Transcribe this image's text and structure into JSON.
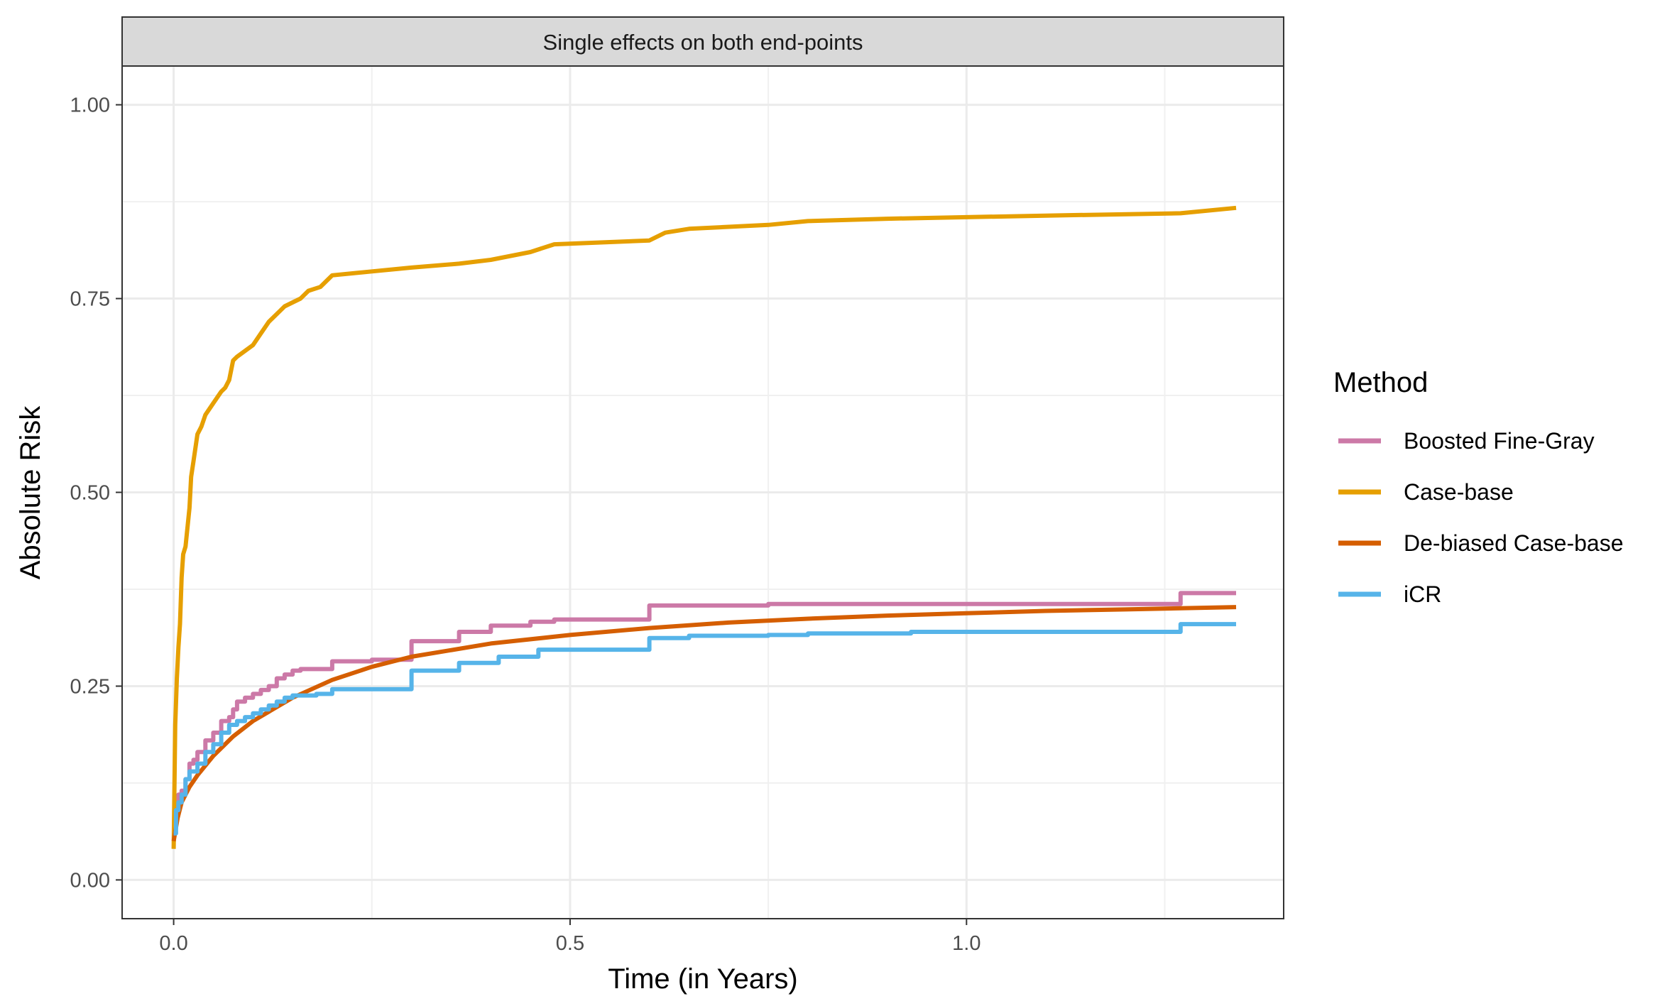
{
  "chart_data": {
    "type": "line",
    "facet_title": "Single effects on both end-points",
    "xlabel": "Time (in Years)",
    "ylabel": "Absolute Risk",
    "xlim": [
      -0.065,
      1.4
    ],
    "ylim": [
      -0.05,
      1.05
    ],
    "x_ticks": [
      0.0,
      0.5,
      1.0
    ],
    "x_tick_labels": [
      "0.0",
      "0.5",
      "1.0"
    ],
    "y_ticks": [
      0.0,
      0.25,
      0.5,
      0.75,
      1.0
    ],
    "y_tick_labels": [
      "0.00",
      "0.25",
      "0.50",
      "0.75",
      "1.00"
    ],
    "grid": true,
    "legend": {
      "title": "Method",
      "placement": "right",
      "entries": [
        "Boosted Fine-Gray",
        "Case-base",
        "De-biased Case-base",
        "iCR"
      ]
    },
    "series": [
      {
        "name": "Boosted Fine-Gray",
        "color": "#CC79A7",
        "step": true,
        "x": [
          0.0,
          0.003,
          0.006,
          0.01,
          0.015,
          0.02,
          0.025,
          0.03,
          0.04,
          0.05,
          0.06,
          0.07,
          0.075,
          0.08,
          0.09,
          0.1,
          0.11,
          0.12,
          0.13,
          0.14,
          0.15,
          0.16,
          0.19,
          0.2,
          0.25,
          0.3,
          0.36,
          0.4,
          0.45,
          0.48,
          0.6,
          0.75,
          1.27,
          1.34
        ],
        "y": [
          0.07,
          0.1,
          0.11,
          0.115,
          0.13,
          0.15,
          0.155,
          0.165,
          0.18,
          0.19,
          0.205,
          0.21,
          0.22,
          0.23,
          0.235,
          0.24,
          0.245,
          0.25,
          0.26,
          0.265,
          0.27,
          0.272,
          0.272,
          0.282,
          0.284,
          0.308,
          0.32,
          0.328,
          0.333,
          0.336,
          0.354,
          0.356,
          0.37,
          0.37
        ]
      },
      {
        "name": "Case-base",
        "color": "#E69F00",
        "step": false,
        "x": [
          0.0,
          0.002,
          0.004,
          0.006,
          0.008,
          0.01,
          0.012,
          0.015,
          0.02,
          0.022,
          0.025,
          0.03,
          0.035,
          0.04,
          0.05,
          0.06,
          0.065,
          0.07,
          0.075,
          0.08,
          0.1,
          0.11,
          0.12,
          0.13,
          0.14,
          0.15,
          0.16,
          0.17,
          0.185,
          0.2,
          0.25,
          0.3,
          0.36,
          0.4,
          0.45,
          0.48,
          0.6,
          0.62,
          0.65,
          0.75,
          0.8,
          0.9,
          1.0,
          1.1,
          1.27,
          1.34
        ],
        "y": [
          0.04,
          0.2,
          0.26,
          0.3,
          0.33,
          0.39,
          0.42,
          0.43,
          0.48,
          0.52,
          0.54,
          0.575,
          0.585,
          0.6,
          0.615,
          0.63,
          0.635,
          0.645,
          0.67,
          0.675,
          0.69,
          0.705,
          0.72,
          0.73,
          0.74,
          0.745,
          0.75,
          0.76,
          0.765,
          0.78,
          0.785,
          0.79,
          0.795,
          0.8,
          0.81,
          0.82,
          0.825,
          0.835,
          0.84,
          0.845,
          0.85,
          0.853,
          0.855,
          0.857,
          0.86,
          0.867
        ]
      },
      {
        "name": "De-biased Case-base",
        "color": "#D55E00",
        "step": false,
        "x": [
          0.0,
          0.005,
          0.01,
          0.02,
          0.03,
          0.05,
          0.075,
          0.1,
          0.15,
          0.2,
          0.25,
          0.3,
          0.4,
          0.5,
          0.6,
          0.7,
          0.8,
          0.9,
          1.0,
          1.1,
          1.2,
          1.34
        ],
        "y": [
          0.05,
          0.08,
          0.1,
          0.12,
          0.135,
          0.16,
          0.185,
          0.205,
          0.235,
          0.258,
          0.275,
          0.288,
          0.305,
          0.316,
          0.325,
          0.332,
          0.337,
          0.341,
          0.344,
          0.347,
          0.349,
          0.352
        ]
      },
      {
        "name": "iCR",
        "color": "#56B4E9",
        "step": true,
        "x": [
          0.0,
          0.003,
          0.006,
          0.01,
          0.015,
          0.02,
          0.03,
          0.04,
          0.05,
          0.06,
          0.07,
          0.08,
          0.09,
          0.1,
          0.11,
          0.12,
          0.13,
          0.14,
          0.15,
          0.18,
          0.2,
          0.25,
          0.3,
          0.36,
          0.41,
          0.46,
          0.6,
          0.65,
          0.75,
          0.8,
          0.93,
          1.27,
          1.34
        ],
        "y": [
          0.06,
          0.09,
          0.1,
          0.11,
          0.13,
          0.14,
          0.15,
          0.165,
          0.175,
          0.19,
          0.2,
          0.205,
          0.21,
          0.215,
          0.22,
          0.225,
          0.23,
          0.235,
          0.238,
          0.24,
          0.246,
          0.246,
          0.27,
          0.28,
          0.288,
          0.297,
          0.312,
          0.315,
          0.316,
          0.318,
          0.32,
          0.33,
          0.33
        ]
      }
    ]
  }
}
